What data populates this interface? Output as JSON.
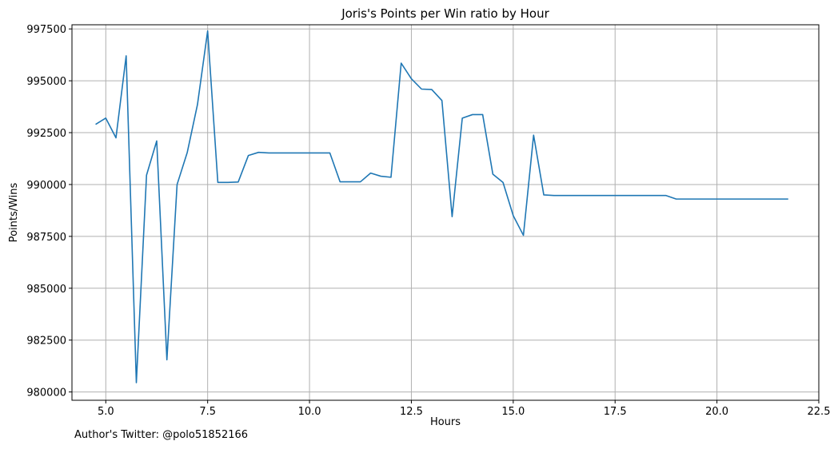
{
  "footer_text": "Author's Twitter: @polo51852166",
  "chart_data": {
    "type": "line",
    "title": "Joris's Points per Win ratio by Hour",
    "xlabel": "Hours",
    "ylabel": "Points/Wins",
    "xlim": [
      4.17,
      22.5
    ],
    "ylim": [
      979600,
      997700
    ],
    "xticks": [
      5.0,
      7.5,
      10.0,
      12.5,
      15.0,
      17.5,
      20.0,
      22.5
    ],
    "xtick_labels": [
      "5.0",
      "7.5",
      "10.0",
      "12.5",
      "15.0",
      "17.5",
      "20.0",
      "22.5"
    ],
    "yticks": [
      980000,
      982500,
      985000,
      987500,
      990000,
      992500,
      995000,
      997500
    ],
    "ytick_labels": [
      "980000",
      "982500",
      "985000",
      "987500",
      "990000",
      "992500",
      "995000",
      "997500"
    ],
    "grid": true,
    "line_color": "#1f77b4",
    "series": [
      {
        "x": [
          4.75,
          5.0,
          5.25,
          5.5,
          5.75,
          6.0,
          6.25,
          6.5,
          6.75,
          7.0,
          7.25,
          7.5,
          7.75,
          8.0,
          8.25,
          8.5,
          8.75,
          9.0,
          9.25,
          9.5,
          9.75,
          10.0,
          10.25,
          10.5,
          10.75,
          11.0,
          11.25,
          11.5,
          11.75,
          12.0,
          12.25,
          12.5,
          12.75,
          13.0,
          13.25,
          13.5,
          13.75,
          14.0,
          14.25,
          14.5,
          14.75,
          15.0,
          15.25,
          15.5,
          15.75,
          16.0,
          16.25,
          16.5,
          16.75,
          17.0,
          17.25,
          17.5,
          17.75,
          18.0,
          18.25,
          18.5,
          18.75,
          19.0,
          19.25,
          19.5,
          19.75,
          20.0,
          20.25,
          20.5,
          20.75,
          21.0,
          21.25,
          21.5,
          21.75
        ],
        "values": [
          992900,
          993200,
          992250,
          996200,
          980450,
          990450,
          992100,
          981550,
          990000,
          991550,
          993850,
          997400,
          990100,
          990100,
          990120,
          991400,
          991550,
          991520,
          991520,
          991520,
          991520,
          991520,
          991520,
          991520,
          990130,
          990130,
          990130,
          990550,
          990400,
          990350,
          995850,
          995100,
          994600,
          994580,
          994050,
          988450,
          993200,
          993370,
          993370,
          990500,
          990100,
          988500,
          987550,
          992380,
          989500,
          989470,
          989470,
          989470,
          989470,
          989470,
          989470,
          989470,
          989470,
          989470,
          989470,
          989470,
          989470,
          989300,
          989300,
          989300,
          989300,
          989300,
          989300,
          989300,
          989300,
          989300,
          989300,
          989300,
          989300
        ]
      }
    ]
  }
}
